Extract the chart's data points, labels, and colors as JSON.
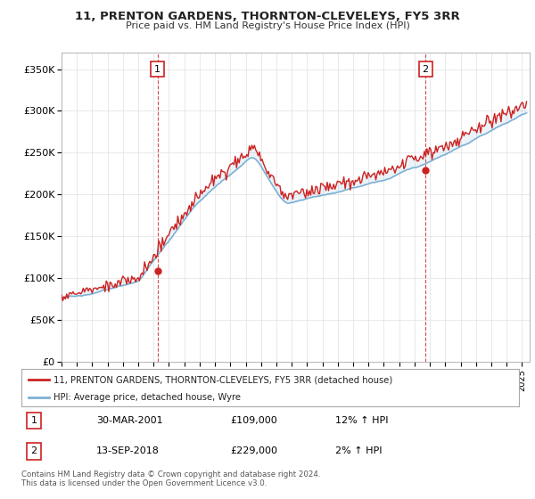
{
  "title": "11, PRENTON GARDENS, THORNTON-CLEVELEYS, FY5 3RR",
  "subtitle": "Price paid vs. HM Land Registry's House Price Index (HPI)",
  "ylabel_ticks": [
    "£0",
    "£50K",
    "£100K",
    "£150K",
    "£200K",
    "£250K",
    "£300K",
    "£350K"
  ],
  "ylim": [
    0,
    370000
  ],
  "xlim_start": 1995.0,
  "xlim_end": 2025.5,
  "sale1_x": 2001.25,
  "sale1_y": 109000,
  "sale1_label": "1",
  "sale2_x": 2018.71,
  "sale2_y": 229000,
  "sale2_label": "2",
  "hpi_color": "#7ab0d4",
  "price_color": "#cc2222",
  "legend_line1": "11, PRENTON GARDENS, THORNTON-CLEVELEYS, FY5 3RR (detached house)",
  "legend_line2": "HPI: Average price, detached house, Wyre",
  "table_row1_num": "1",
  "table_row1_date": "30-MAR-2001",
  "table_row1_price": "£109,000",
  "table_row1_hpi": "12% ↑ HPI",
  "table_row2_num": "2",
  "table_row2_date": "13-SEP-2018",
  "table_row2_price": "£229,000",
  "table_row2_hpi": "2% ↑ HPI",
  "footer": "Contains HM Land Registry data © Crown copyright and database right 2024.\nThis data is licensed under the Open Government Licence v3.0.",
  "background_color": "#ffffff",
  "grid_color": "#e0e0e0"
}
